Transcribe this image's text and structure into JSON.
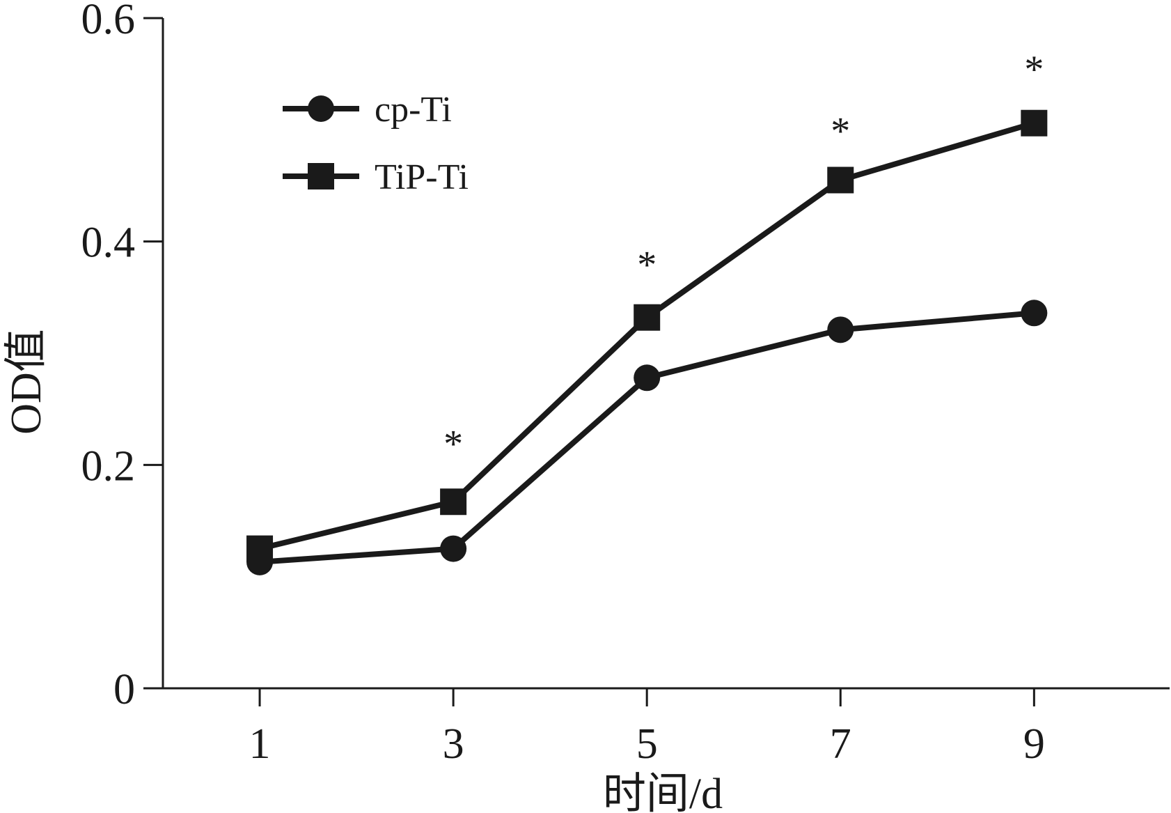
{
  "chart_data": {
    "type": "line",
    "xlabel": "时间/d",
    "ylabel": "OD值",
    "x": [
      1,
      3,
      5,
      7,
      9
    ],
    "xticks": [
      "1",
      "3",
      "5",
      "7",
      "9"
    ],
    "xlim": [
      0,
      10.4
    ],
    "ylim": [
      0,
      0.6
    ],
    "yticks": [
      "0",
      "0.2",
      "0.4",
      "0.6"
    ],
    "ytick_values": [
      0,
      0.2,
      0.4,
      0.6
    ],
    "grid": false,
    "legend_position": "top-left",
    "series": [
      {
        "name": "cp-Ti",
        "marker": "circle",
        "values": [
          0.113,
          0.125,
          0.278,
          0.321,
          0.336
        ]
      },
      {
        "name": "TiP-Ti",
        "marker": "square",
        "values": [
          0.125,
          0.167,
          0.332,
          0.455,
          0.506
        ]
      }
    ],
    "annotations": [
      {
        "x": 3,
        "y": 0.22,
        "text": "*"
      },
      {
        "x": 5,
        "y": 0.38,
        "text": "*"
      },
      {
        "x": 7,
        "y": 0.5,
        "text": "*"
      },
      {
        "x": 9,
        "y": 0.555,
        "text": "*"
      }
    ],
    "line_color": "#1a1a1a"
  }
}
